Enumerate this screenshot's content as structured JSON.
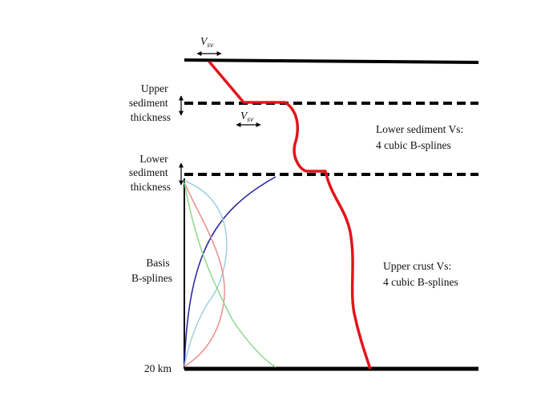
{
  "labels": {
    "upper_sediment": [
      "Upper",
      "sediment",
      "thickness"
    ],
    "lower_sediment": [
      "Lower",
      "sediment",
      "thickness"
    ],
    "basis": [
      "Basis",
      "B-splines"
    ],
    "depth_bottom": "20 km",
    "vsv_main": "V",
    "vsv_sub": "sv",
    "lower_sediment_note": [
      "Lower sediment Vs:",
      "4 cubic B-splines"
    ],
    "upper_crust_note": [
      "Upper crust Vs:",
      "4 cubic B-splines"
    ]
  },
  "colors": {
    "profile": "#e3141b",
    "boundary": "#000000",
    "spline_blue": "#1f1fa0",
    "spline_lightblue": "#9fcfe0",
    "spline_red": "#ef8c8c",
    "spline_green": "#8cd98c"
  }
}
